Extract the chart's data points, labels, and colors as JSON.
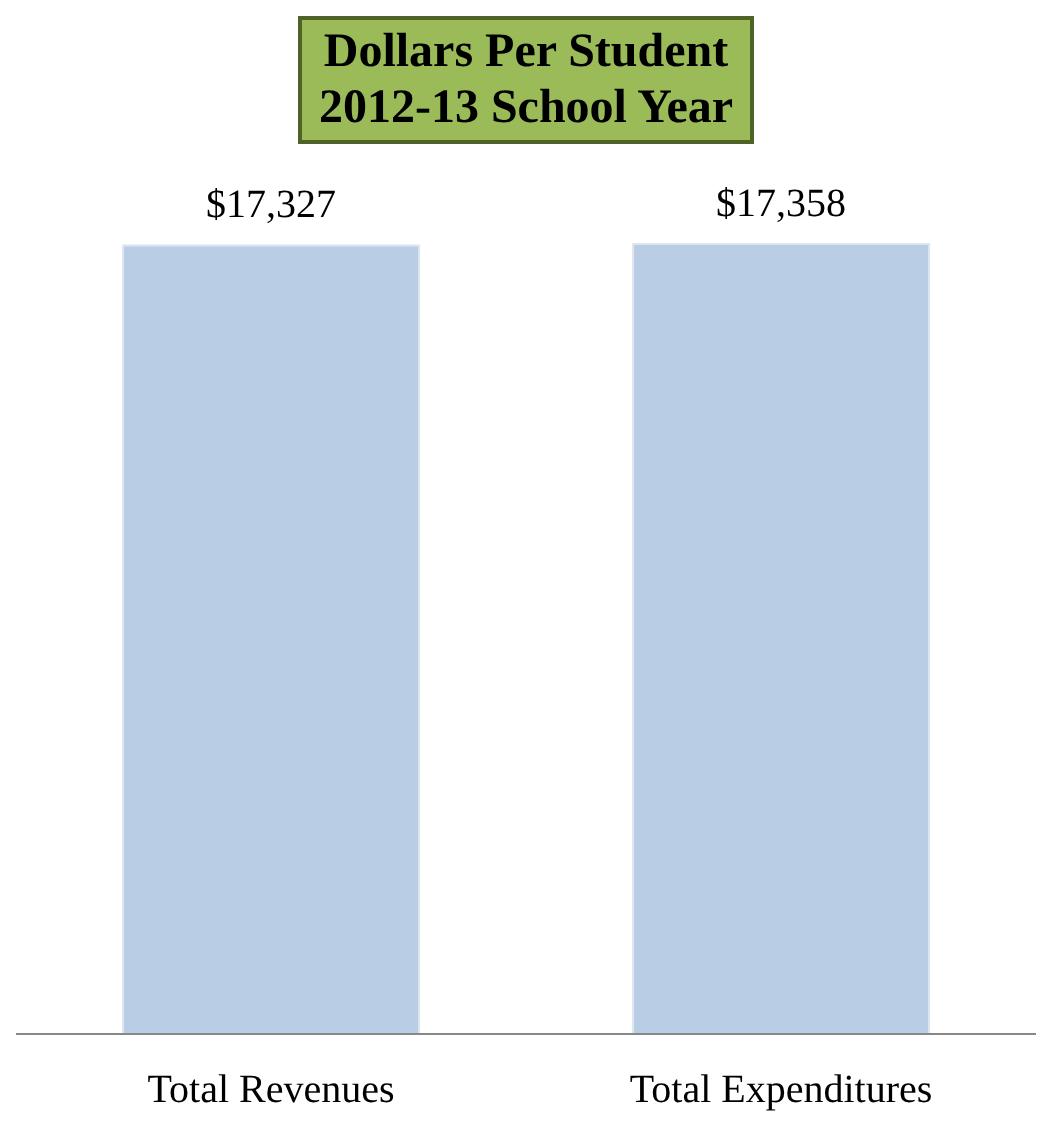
{
  "chart_data": {
    "type": "bar",
    "title": "Dollars Per Student",
    "subtitle": "2012-13 School Year",
    "categories": [
      "Total Revenues",
      "Total Expenditures"
    ],
    "values": [
      17327,
      17358
    ],
    "color": "#b9cde5",
    "value_labels": [
      "$17,327",
      "$17,358"
    ]
  }
}
